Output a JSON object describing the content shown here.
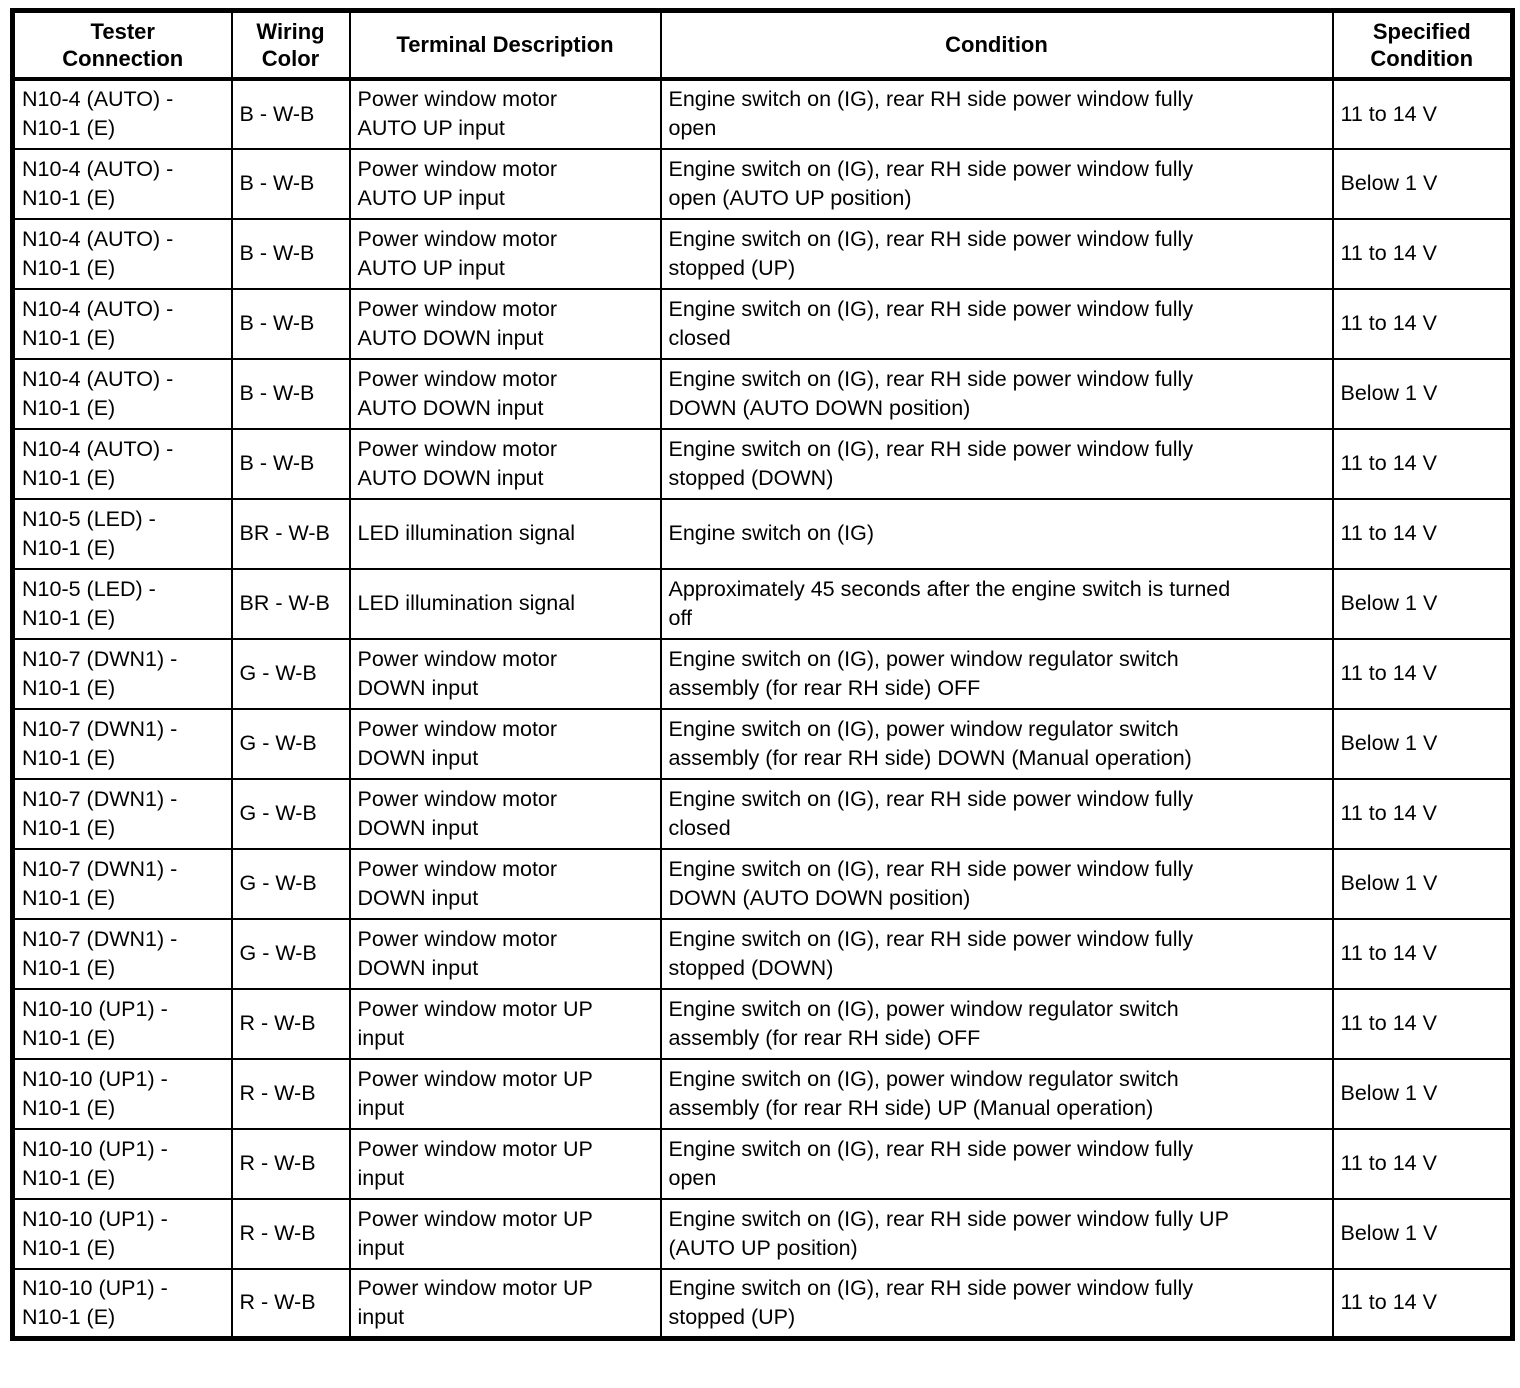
{
  "page": {
    "background_color": "#ffffff",
    "text_color": "#000000",
    "border_color": "#000000"
  },
  "table": {
    "headers": [
      "Tester\nConnection",
      "Wiring\nColor",
      "Terminal Description",
      "Condition",
      "Specified\nCondition"
    ],
    "rows": [
      [
        "N10-4 (AUTO) -\nN10-1 (E)",
        "B - W-B",
        "Power window motor\nAUTO UP input",
        "Engine switch on (IG), rear RH side power window fully\nopen",
        "11 to 14 V"
      ],
      [
        "N10-4 (AUTO) -\nN10-1 (E)",
        "B - W-B",
        "Power window motor\nAUTO UP input",
        "Engine switch on (IG), rear RH side power window fully\nopen (AUTO UP position)",
        "Below 1 V"
      ],
      [
        "N10-4 (AUTO) -\nN10-1 (E)",
        "B - W-B",
        "Power window motor\nAUTO UP input",
        "Engine switch on (IG), rear RH side power window fully\nstopped (UP)",
        "11 to 14 V"
      ],
      [
        "N10-4 (AUTO) -\nN10-1 (E)",
        "B - W-B",
        "Power window motor\nAUTO DOWN input",
        "Engine switch on (IG), rear RH side power window fully\nclosed",
        "11 to 14 V"
      ],
      [
        "N10-4 (AUTO) -\nN10-1 (E)",
        "B - W-B",
        "Power window motor\nAUTO DOWN input",
        "Engine switch on (IG), rear RH side power window fully\nDOWN (AUTO DOWN position)",
        "Below 1 V"
      ],
      [
        "N10-4 (AUTO) -\nN10-1 (E)",
        "B - W-B",
        "Power window motor\nAUTO DOWN input",
        "Engine switch on (IG), rear RH side power window fully\nstopped (DOWN)",
        "11 to 14 V"
      ],
      [
        "N10-5 (LED) -\nN10-1 (E)",
        "BR - W-B",
        "LED illumination signal",
        "Engine switch on (IG)",
        "11 to 14 V"
      ],
      [
        "N10-5 (LED) -\nN10-1 (E)",
        "BR - W-B",
        "LED illumination signal",
        "Approximately 45 seconds after the engine switch is turned\noff",
        "Below 1 V"
      ],
      [
        "N10-7 (DWN1) -\nN10-1 (E)",
        "G - W-B",
        "Power window motor\nDOWN input",
        "Engine switch on (IG), power window regulator switch\nassembly (for rear RH side) OFF",
        "11 to 14 V"
      ],
      [
        "N10-7 (DWN1) -\nN10-1 (E)",
        "G - W-B",
        "Power window motor\nDOWN input",
        "Engine switch on (IG), power window regulator switch\nassembly (for rear RH side) DOWN (Manual operation)",
        "Below 1 V"
      ],
      [
        "N10-7 (DWN1) -\nN10-1 (E)",
        "G - W-B",
        "Power window motor\nDOWN input",
        "Engine switch on (IG), rear RH side power window fully\nclosed",
        "11 to 14 V"
      ],
      [
        "N10-7 (DWN1) -\nN10-1 (E)",
        "G - W-B",
        "Power window motor\nDOWN input",
        "Engine switch on (IG), rear RH side power window fully\nDOWN (AUTO DOWN position)",
        "Below 1 V"
      ],
      [
        "N10-7 (DWN1) -\nN10-1 (E)",
        "G - W-B",
        "Power window motor\nDOWN input",
        "Engine switch on (IG), rear RH side power window fully\nstopped (DOWN)",
        "11 to 14 V"
      ],
      [
        "N10-10 (UP1) -\nN10-1 (E)",
        "R - W-B",
        "Power window motor UP\ninput",
        "Engine switch on (IG), power window regulator switch\nassembly (for rear RH side) OFF",
        "11 to 14 V"
      ],
      [
        "N10-10 (UP1) -\nN10-1 (E)",
        "R - W-B",
        "Power window motor UP\ninput",
        "Engine switch on (IG), power window regulator switch\nassembly (for rear RH side) UP (Manual operation)",
        "Below 1 V"
      ],
      [
        "N10-10 (UP1) -\nN10-1 (E)",
        "R - W-B",
        "Power window motor UP\ninput",
        "Engine switch on (IG), rear RH side power window fully\nopen",
        "11 to 14 V"
      ],
      [
        "N10-10 (UP1) -\nN10-1 (E)",
        "R - W-B",
        "Power window motor UP\ninput",
        "Engine switch on (IG), rear RH side power window fully UP\n(AUTO UP position)",
        "Below 1 V"
      ],
      [
        "N10-10 (UP1) -\nN10-1 (E)",
        "R - W-B",
        "Power window motor UP\ninput",
        "Engine switch on (IG), rear RH side power window fully\nstopped (UP)",
        "11 to 14 V"
      ]
    ]
  }
}
